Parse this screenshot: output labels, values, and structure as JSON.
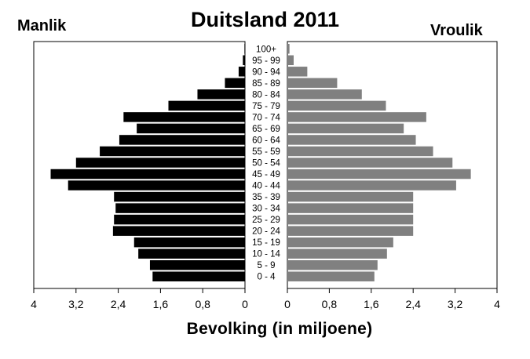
{
  "chart_data": {
    "type": "bar",
    "title": "Duitsland 2011",
    "xlabel": "Bevolking (in miljoene)",
    "left_label": "Manlik",
    "right_label": "Vroulik",
    "xlim": [
      0,
      4
    ],
    "xticks_left": [
      "4",
      "3,2",
      "2,4",
      "1,6",
      "0,8",
      "0"
    ],
    "xticks_right": [
      "0",
      "0,8",
      "1,6",
      "2,4",
      "3,2",
      "4"
    ],
    "xtick_values": [
      0,
      0.8,
      1.6,
      2.4,
      3.2,
      4
    ],
    "categories": [
      "100+",
      "95 - 99",
      "90 - 94",
      "85 - 89",
      "80 - 84",
      "75 - 79",
      "70 - 74",
      "65 - 69",
      "60 - 64",
      "55 - 59",
      "50 - 54",
      "45 - 49",
      "40 - 44",
      "35 - 39",
      "30 - 34",
      "25 - 29",
      "20 - 24",
      "15 - 19",
      "10 - 14",
      "5 - 9",
      "0 - 4"
    ],
    "series": [
      {
        "name": "Manlik",
        "color": "#000000",
        "values": [
          0.01,
          0.04,
          0.12,
          0.38,
          0.9,
          1.45,
          2.3,
          2.05,
          2.38,
          2.75,
          3.2,
          3.68,
          3.35,
          2.48,
          2.45,
          2.48,
          2.5,
          2.1,
          2.02,
          1.8,
          1.75
        ]
      },
      {
        "name": "Vroulik",
        "color": "#808080",
        "values": [
          0.04,
          0.12,
          0.38,
          0.95,
          1.42,
          1.88,
          2.65,
          2.22,
          2.45,
          2.78,
          3.15,
          3.5,
          3.22,
          2.4,
          2.4,
          2.4,
          2.4,
          2.02,
          1.9,
          1.72,
          1.66
        ]
      }
    ]
  }
}
